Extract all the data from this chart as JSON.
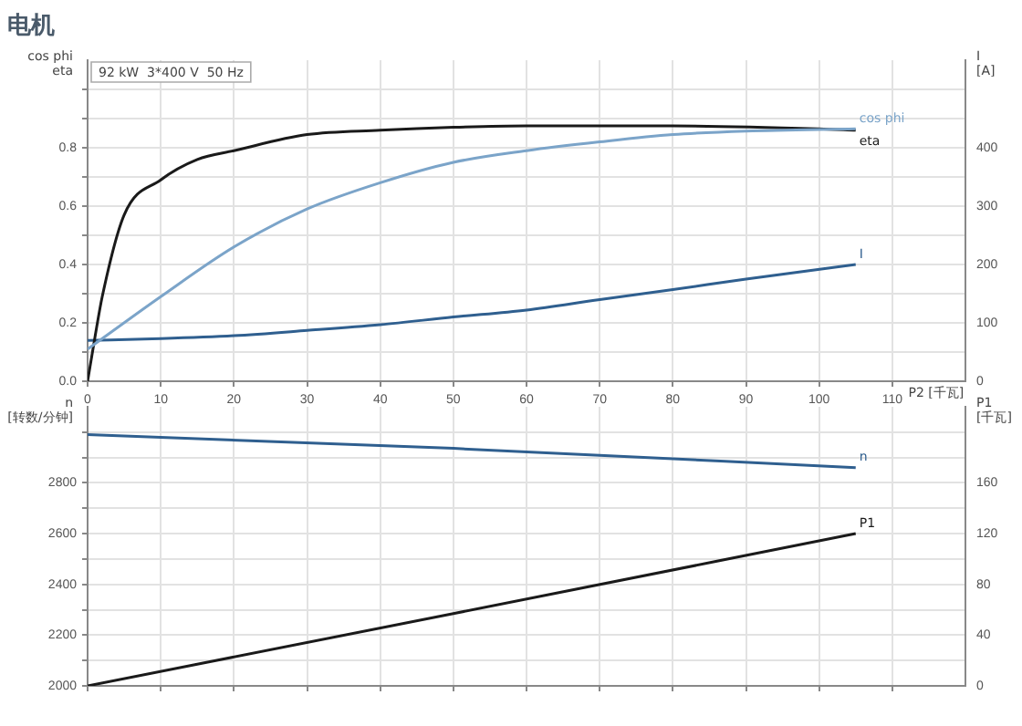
{
  "chart_data": [
    {
      "type": "line",
      "title": "电机",
      "ylabel": "cos phi\neta",
      "y2label": "I\n[A]",
      "xlabel": "P2 [千瓦]",
      "annotations": [
        "92 kW  3*400 V  50 Hz"
      ],
      "grid": true,
      "marker": "none",
      "xlim": [
        0,
        120
      ],
      "xticks": [
        0,
        10,
        20,
        30,
        40,
        50,
        60,
        70,
        80,
        90,
        100,
        110
      ],
      "ylim": [
        0,
        1.1
      ],
      "yticks": [
        {
          "value": 0,
          "label": "0.0"
        },
        {
          "value": 0.1,
          "label": null
        },
        0.2,
        {
          "value": 0.3,
          "label": null
        },
        0.4,
        {
          "value": 0.5,
          "label": null
        },
        0.6,
        {
          "value": 0.7,
          "label": null
        },
        0.8,
        {
          "value": 0.9,
          "label": null
        },
        {
          "value": 1,
          "label": null
        }
      ],
      "y2lim": [
        0,
        550
      ],
      "y2ticks": [
        0,
        100,
        200,
        300,
        400
      ],
      "series": [
        {
          "name": "cos phi",
          "color": "#7ba4c9",
          "x": [
            0,
            10,
            20,
            30,
            40,
            50,
            60,
            70,
            80,
            90,
            105
          ],
          "values": [
            0.11,
            0.29,
            0.46,
            0.59,
            0.68,
            0.75,
            0.79,
            0.82,
            0.845,
            0.857,
            0.865
          ]
        },
        {
          "name": "eta",
          "color": "#1a1a1a",
          "x": [
            0,
            1,
            2,
            5,
            10,
            15,
            20,
            30,
            40,
            50,
            60,
            80,
            100,
            105
          ],
          "values": [
            0,
            0.15,
            0.29,
            0.57,
            0.69,
            0.76,
            0.79,
            0.845,
            0.86,
            0.87,
            0.875,
            0.875,
            0.865,
            0.86
          ]
        },
        {
          "name": "I",
          "color": "#2f5f8f",
          "axis": "y2",
          "x": [
            0,
            10,
            20,
            30,
            40,
            50,
            60,
            70,
            80,
            90,
            105
          ],
          "values": [
            70,
            73,
            78,
            87,
            97,
            110,
            122,
            140,
            157,
            175,
            200
          ]
        }
      ]
    },
    {
      "type": "line",
      "ylabel": "n\n[转数/分钟]",
      "y2label": "P1\n[千瓦]",
      "grid": true,
      "marker": "none",
      "tick_labels": "y",
      "xlim": [
        0,
        120
      ],
      "xticks": [
        0,
        10,
        20,
        30,
        40,
        50,
        60,
        70,
        80,
        90,
        100,
        110
      ],
      "ylim": [
        2000,
        3100
      ],
      "yticks": [
        2000,
        {
          "value": 2100,
          "label": null
        },
        2200,
        {
          "value": 2300,
          "label": null
        },
        2400,
        {
          "value": 2500,
          "label": null
        },
        2600,
        {
          "value": 2700,
          "label": null
        },
        2800,
        {
          "value": 2900,
          "label": null
        },
        {
          "value": 3000,
          "label": null
        }
      ],
      "y2lim": [
        0,
        220
      ],
      "y2ticks": [
        0,
        40,
        80,
        120,
        160
      ],
      "series": [
        {
          "name": "n",
          "color": "#2f5f8f",
          "x": [
            0,
            50,
            105
          ],
          "values": [
            2990,
            2936,
            2860
          ]
        },
        {
          "name": "P1",
          "color": "#1a1a1a",
          "axis": "y2",
          "x": [
            0,
            50,
            105
          ],
          "values": [
            0,
            57,
            120
          ]
        }
      ]
    }
  ]
}
